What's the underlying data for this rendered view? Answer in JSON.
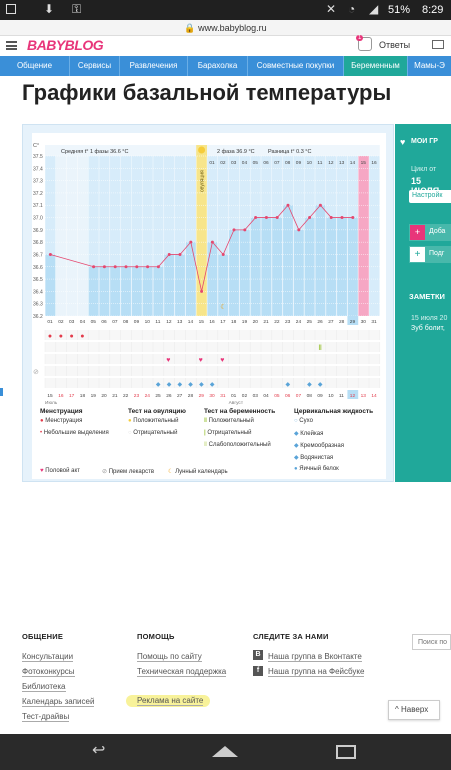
{
  "status_bar": {
    "battery": "51%",
    "time": "8:29"
  },
  "url_bar": {
    "url": "www.babyblog.ru"
  },
  "header": {
    "logo": "BABYBLOG",
    "answers_label": "Ответы",
    "answers_badge": "1"
  },
  "nav": {
    "items": [
      "Общение",
      "Сервисы",
      "Развлечения",
      "Барахолка",
      "Совместные покупки",
      "Беременным",
      "Мамы-Э"
    ]
  },
  "page_title": "Графики базальной температуры",
  "chart": {
    "info_phase1": "Средняя t° 1 фазы 36.6 °C",
    "info_phase2": "2 фаза 36.9 °C",
    "info_diff": "Разница t° 0.3 °C",
    "ovulation_label": "овуляция",
    "unit_label": "C°",
    "month1": "Июль",
    "month2": "Август"
  },
  "chart_data": {
    "type": "line",
    "y_ticks": [
      "37.5",
      "37.4",
      "37.3",
      "37.2",
      "37.1",
      "37.0",
      "36.9",
      "36.8",
      "36.7",
      "36.6",
      "36.5",
      "36.4",
      "36.3",
      "36.2"
    ],
    "ylim": [
      36.2,
      37.5
    ],
    "cycle_days": [
      "01",
      "02",
      "03",
      "04",
      "05",
      "06",
      "07",
      "08",
      "09",
      "10",
      "11",
      "12",
      "13",
      "14",
      "15",
      "16",
      "17",
      "18",
      "19",
      "20",
      "21",
      "22",
      "23",
      "24",
      "25",
      "26",
      "27",
      "28",
      "29",
      "30",
      "31"
    ],
    "phase2_days": [
      "01",
      "02",
      "03",
      "04",
      "05",
      "06",
      "07",
      "08",
      "09",
      "10",
      "11",
      "12",
      "13",
      "14",
      "15",
      "16"
    ],
    "dates": [
      "15",
      "16",
      "17",
      "18",
      "19",
      "20",
      "21",
      "22",
      "23",
      "24",
      "25",
      "26",
      "27",
      "28",
      "29",
      "30",
      "31",
      "01",
      "02",
      "03",
      "04",
      "05",
      "06",
      "07",
      "08",
      "09",
      "10",
      "11",
      "12",
      "13",
      "14"
    ],
    "temperatures": [
      36.7,
      null,
      null,
      null,
      36.6,
      36.6,
      36.6,
      36.6,
      36.6,
      36.6,
      36.6,
      36.7,
      36.7,
      36.8,
      36.4,
      36.8,
      36.7,
      36.9,
      36.9,
      37.0,
      37.0,
      37.0,
      37.1,
      36.9,
      37.0,
      37.1,
      37.0,
      37.0,
      37.0,
      null,
      null
    ],
    "ovulation_day": 15
  },
  "legend": {
    "menstruation": {
      "title": "Менструация",
      "items": [
        "Менструация",
        "Небольшие выделения"
      ]
    },
    "ovulation_test": {
      "title": "Тест на овуляцию",
      "items": [
        "Положительный",
        "Отрицательный"
      ]
    },
    "pregnancy_test": {
      "title": "Тест на беременность",
      "items": [
        "Положительный",
        "Отрицательный",
        "Слабоположительный"
      ]
    },
    "cervical_fluid": {
      "title": "Цервикальная жидкость",
      "items": [
        "Сухо",
        "Клейкая",
        "Кремообразная",
        "Водянистая",
        "Яичный белок"
      ]
    },
    "bottom": [
      "Половой акт",
      "Прием лекарств",
      "Лунный календарь"
    ]
  },
  "sidebar": {
    "my_graphs": "МОИ ГР",
    "cycle_from": "Цикл от",
    "cycle_date": "15 ИЮЛЯ",
    "settings": "Настройк",
    "add1": "Доба",
    "add2": "Подг",
    "notes_title": "ЗАМЕТКИ",
    "note_date": "15 июля 20",
    "note_text": "Зуб болит,"
  },
  "footer": {
    "col1": {
      "title": "ОБЩЕНИЕ",
      "links": [
        "Консультации",
        "Фотоконкурсы",
        "Библиотека",
        "Календарь записей",
        "Тест-драйвы"
      ]
    },
    "col2": {
      "title": "ПОМОЩЬ",
      "links": [
        "Помощь по сайту",
        "Техническая поддержка",
        "Реклама на сайте"
      ]
    },
    "col3": {
      "title": "СЛЕДИТЕ ЗА НАМИ",
      "links": [
        "Наша группа в Вконтакте",
        "Наша группа на Фейсбуке"
      ]
    },
    "search_placeholder": "Поиск по",
    "back_button": "Наверх"
  },
  "colors": {
    "nav": "#3a8fd8",
    "logo": "#e8357a",
    "sidebar": "#20a89a",
    "bars": "#b7def5",
    "ovulation": "#f7e58a",
    "pink": "#f6a7c4"
  }
}
